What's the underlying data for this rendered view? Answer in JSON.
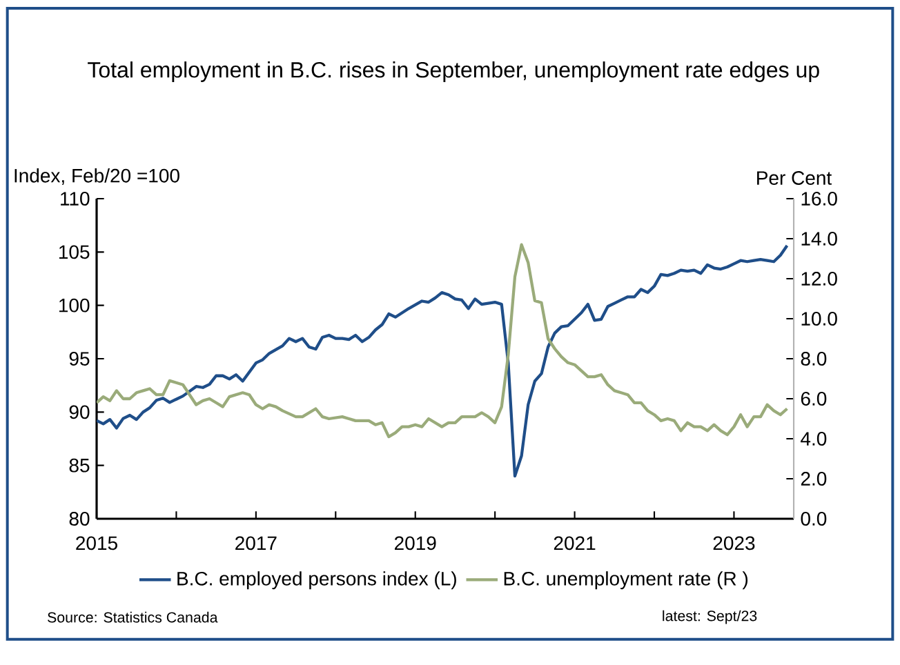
{
  "chart_data": {
    "type": "line",
    "title": "Total employment in B.C. rises in September, unemployment rate edges up",
    "ylabel": "Index, Feb/20 =100",
    "y2label": "Per Cent",
    "annotations": [
      "Source: Statistics Canada",
      "latest: Sept/23"
    ],
    "xlim": [
      "2015-01",
      "2023-10"
    ],
    "xticks": [
      {
        "value": "2015-01",
        "label": "2015"
      },
      {
        "value": "2016-01",
        "label": null
      },
      {
        "value": "2017-01",
        "label": "2017"
      },
      {
        "value": "2018-01",
        "label": null
      },
      {
        "value": "2019-01",
        "label": "2019"
      },
      {
        "value": "2020-01",
        "label": null
      },
      {
        "value": "2021-01",
        "label": "2021"
      },
      {
        "value": "2022-01",
        "label": null
      },
      {
        "value": "2023-01",
        "label": "2023"
      }
    ],
    "ylim": [
      80,
      110
    ],
    "yticks": [
      80,
      85,
      90,
      95,
      100,
      105,
      110
    ],
    "y2lim": [
      0,
      16
    ],
    "y2ticks": [
      {
        "value": 0,
        "label": "0.0"
      },
      {
        "value": 2,
        "label": "2.0"
      },
      {
        "value": 4,
        "label": "4.0"
      },
      {
        "value": 6,
        "label": "6.0"
      },
      {
        "value": 8,
        "label": "8.0"
      },
      {
        "value": 10,
        "label": "10.0"
      },
      {
        "value": 12,
        "label": "12.0"
      },
      {
        "value": 14,
        "label": "14.0"
      },
      {
        "value": 16,
        "label": "16.0"
      }
    ],
    "legend": "bottom",
    "grid": false,
    "marker": "none",
    "line_style": "solid",
    "series": [
      {
        "name": "B.C. employed persons index (L)",
        "color": "#1f4e89",
        "axis": "y",
        "x": [
          "2015-01",
          "2015-02",
          "2015-03",
          "2015-04",
          "2015-05",
          "2015-06",
          "2015-07",
          "2015-08",
          "2015-09",
          "2015-10",
          "2015-11",
          "2015-12",
          "2016-01",
          "2016-02",
          "2016-04",
          "2016-05",
          "2016-06",
          "2016-07",
          "2016-08",
          "2016-09",
          "2016-10",
          "2016-11",
          "2017-01",
          "2017-02",
          "2017-03",
          "2017-05",
          "2017-06",
          "2017-07",
          "2017-08",
          "2017-09",
          "2017-10",
          "2017-11",
          "2017-12",
          "2018-01",
          "2018-02",
          "2018-03",
          "2018-04",
          "2018-05",
          "2018-06",
          "2018-07",
          "2018-08",
          "2018-09",
          "2018-10",
          "2018-11",
          "2018-12",
          "2019-02",
          "2019-03",
          "2019-04",
          "2019-05",
          "2019-06",
          "2019-07",
          "2019-08",
          "2019-09",
          "2019-10",
          "2019-11",
          "2019-12",
          "2020-01",
          "2020-02",
          "2020-03",
          "2020-04",
          "2020-05",
          "2020-06",
          "2020-07",
          "2020-08",
          "2020-09",
          "2020-10",
          "2020-11",
          "2020-12",
          "2021-01",
          "2021-02",
          "2021-03",
          "2021-04",
          "2021-05",
          "2021-06",
          "2021-07",
          "2021-08",
          "2021-09",
          "2021-10",
          "2021-11",
          "2021-12",
          "2022-01",
          "2022-02",
          "2022-03",
          "2022-04",
          "2022-05",
          "2022-06",
          "2022-07",
          "2022-08",
          "2022-09",
          "2022-10",
          "2022-11",
          "2022-12",
          "2023-01",
          "2023-02",
          "2023-03",
          "2023-04",
          "2023-05",
          "2023-06",
          "2023-07",
          "2023-08",
          "2023-09"
        ],
        "values": [
          89.2,
          88.9,
          89.3,
          88.5,
          89.4,
          89.7,
          89.3,
          90.0,
          90.4,
          91.1,
          91.3,
          90.9,
          91.2,
          91.5,
          92.4,
          92.3,
          92.6,
          93.4,
          93.4,
          93.1,
          93.5,
          92.9,
          94.6,
          94.9,
          95.5,
          96.2,
          96.9,
          96.6,
          96.9,
          96.1,
          95.9,
          97.0,
          97.2,
          96.9,
          96.9,
          96.8,
          97.2,
          96.6,
          97.0,
          97.7,
          98.2,
          99.2,
          98.9,
          99.3,
          99.7,
          100.4,
          100.3,
          100.7,
          101.2,
          101.0,
          100.6,
          100.5,
          99.7,
          100.6,
          100.1,
          100.2,
          100.3,
          100.1,
          94.6,
          84.0,
          85.9,
          90.7,
          92.9,
          93.6,
          96.1,
          97.4,
          98.0,
          98.1,
          98.7,
          99.3,
          100.1,
          98.6,
          98.7,
          99.9,
          100.2,
          100.5,
          100.8,
          100.8,
          101.5,
          101.2,
          101.8,
          102.9,
          102.8,
          103.0,
          103.3,
          103.2,
          103.3,
          103.0,
          103.8,
          103.5,
          103.4,
          103.6,
          103.9,
          104.2,
          104.1,
          104.2,
          104.3,
          104.2,
          104.1,
          104.7,
          105.6
        ]
      },
      {
        "name": "B.C. unemployment rate (R )",
        "color": "#9aab7a",
        "axis": "y2",
        "x": [
          "2015-01",
          "2015-02",
          "2015-03",
          "2015-04",
          "2015-05",
          "2015-06",
          "2015-07",
          "2015-08",
          "2015-09",
          "2015-10",
          "2015-11",
          "2015-12",
          "2016-01",
          "2016-02",
          "2016-04",
          "2016-05",
          "2016-06",
          "2016-07",
          "2016-08",
          "2016-09",
          "2016-10",
          "2016-11",
          "2016-12",
          "2017-01",
          "2017-02",
          "2017-03",
          "2017-04",
          "2017-05",
          "2017-07",
          "2017-08",
          "2017-10",
          "2017-11",
          "2017-12",
          "2018-02",
          "2018-03",
          "2018-04",
          "2018-06",
          "2018-07",
          "2018-08",
          "2018-09",
          "2018-10",
          "2018-11",
          "2018-12",
          "2019-01",
          "2019-02",
          "2019-03",
          "2019-04",
          "2019-05",
          "2019-06",
          "2019-07",
          "2019-08",
          "2019-09",
          "2019-10",
          "2019-11",
          "2019-12",
          "2020-01",
          "2020-02",
          "2020-03",
          "2020-04",
          "2020-05",
          "2020-06",
          "2020-07",
          "2020-08",
          "2020-09",
          "2020-10",
          "2020-11",
          "2020-12",
          "2021-01",
          "2021-02",
          "2021-03",
          "2021-04",
          "2021-05",
          "2021-06",
          "2021-07",
          "2021-08",
          "2021-09",
          "2021-10",
          "2021-11",
          "2021-12",
          "2022-01",
          "2022-02",
          "2022-03",
          "2022-04",
          "2022-05",
          "2022-06",
          "2022-07",
          "2022-08",
          "2022-09",
          "2022-10",
          "2022-11",
          "2022-12",
          "2023-01",
          "2023-02",
          "2023-03",
          "2023-04",
          "2023-05",
          "2023-06",
          "2023-07",
          "2023-08",
          "2023-09"
        ],
        "values": [
          5.8,
          6.1,
          5.9,
          6.4,
          6.0,
          6.0,
          6.3,
          6.4,
          6.5,
          6.2,
          6.2,
          6.9,
          6.8,
          6.7,
          5.7,
          5.9,
          6.0,
          5.8,
          5.6,
          6.1,
          6.2,
          6.3,
          6.2,
          5.7,
          5.5,
          5.7,
          5.6,
          5.4,
          5.1,
          5.1,
          5.5,
          5.1,
          5.0,
          5.1,
          5.0,
          4.9,
          4.9,
          4.7,
          4.8,
          4.1,
          4.3,
          4.6,
          4.6,
          4.7,
          4.6,
          5.0,
          4.8,
          4.6,
          4.8,
          4.8,
          5.1,
          5.1,
          5.1,
          5.3,
          5.1,
          4.8,
          5.6,
          8.2,
          12.1,
          13.7,
          12.8,
          10.9,
          10.8,
          9.0,
          8.5,
          8.1,
          7.8,
          7.7,
          7.4,
          7.1,
          7.1,
          7.2,
          6.7,
          6.4,
          6.3,
          6.2,
          5.8,
          5.8,
          5.4,
          5.2,
          4.9,
          5.0,
          4.9,
          4.4,
          4.8,
          4.6,
          4.6,
          4.4,
          4.7,
          4.4,
          4.2,
          4.6,
          5.2,
          4.6,
          5.1,
          5.1,
          5.7,
          5.4,
          5.2,
          5.5
        ]
      }
    ]
  }
}
